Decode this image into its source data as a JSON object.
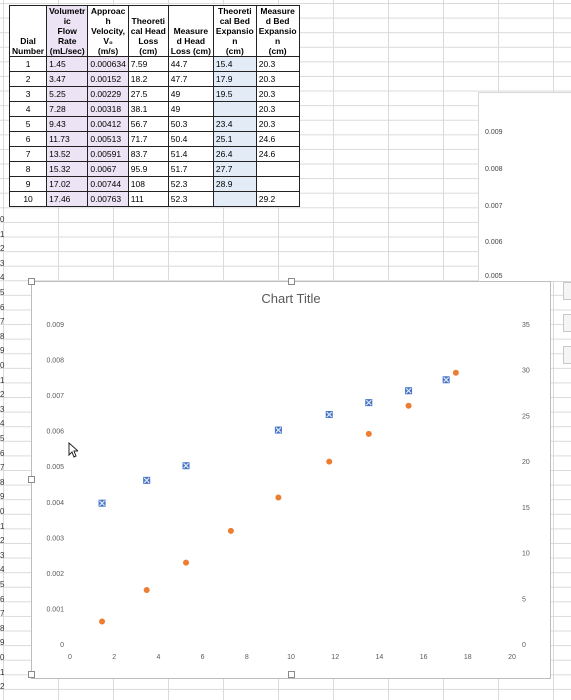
{
  "table": {
    "headers": [
      "Dial\nNumber",
      "Volumetr\nic\nFlow\nRate\n(mL/sec)",
      "Approac\nh\nVelocity,\nV₀\n(m/s)",
      "Theoreti\ncal Head\nLoss\n(cm)",
      "Measure\nd Head\nLoss (cm)",
      "Theoreti\ncal Bed\nExpansio\nn\n(cm)",
      "Measure\nd Bed\nExpansio\nn\n(cm)"
    ],
    "rows": [
      [
        "1",
        "1.45",
        "0.000634",
        "7.59",
        "44.7",
        "15.4",
        "20.3"
      ],
      [
        "2",
        "3.47",
        "0.00152",
        "18.2",
        "47.7",
        "17.9",
        "20.3"
      ],
      [
        "3",
        "5.25",
        "0.00229",
        "27.5",
        "49",
        "19.5",
        "20.3"
      ],
      [
        "4",
        "7.28",
        "0.00318",
        "38.1",
        "49",
        "",
        "20.3"
      ],
      [
        "5",
        "9.43",
        "0.00412",
        "56.7",
        "50.3",
        "23.4",
        "20.3"
      ],
      [
        "6",
        "11.73",
        "0.00513",
        "71.7",
        "50.4",
        "25.1",
        "24.6"
      ],
      [
        "7",
        "13.52",
        "0.00591",
        "83.7",
        "51.4",
        "26.4",
        "24.6"
      ],
      [
        "8",
        "15.32",
        "0.0067",
        "95.9",
        "51.7",
        "27.7",
        ""
      ],
      [
        "9",
        "17.02",
        "0.00744",
        "108",
        "52.3",
        "28.9",
        ""
      ],
      [
        "10",
        "17.46",
        "0.00763",
        "111",
        "52.3",
        "",
        "29.2"
      ]
    ]
  },
  "side_panel": {
    "ticks": [
      "0.009",
      "0.008",
      "0.007",
      "0.006",
      "0.005"
    ]
  },
  "colors": {
    "series1": "#4472c4",
    "series2": "#ed7d31",
    "selection": "#9a7bc8"
  },
  "chart_data": {
    "type": "scatter",
    "title": "Chart Title",
    "xlim": [
      0,
      20
    ],
    "ylim_left": [
      0,
      0.009
    ],
    "ylim_right": [
      0,
      35
    ],
    "x_ticks": [
      "0",
      "2",
      "4",
      "6",
      "8",
      "10",
      "12",
      "14",
      "16",
      "18",
      "20"
    ],
    "y_left_ticks": [
      "0",
      "0.001",
      "0.002",
      "0.003",
      "0.004",
      "0.005",
      "0.006",
      "0.007",
      "0.008",
      "0.009"
    ],
    "y_right_ticks": [
      "0",
      "5",
      "10",
      "15",
      "20",
      "25",
      "30",
      "35"
    ],
    "series": [
      {
        "axis": "right",
        "marker": "x-square",
        "color": "#4472c4",
        "points": [
          [
            1.45,
            15.4
          ],
          [
            3.47,
            17.9
          ],
          [
            5.25,
            19.5
          ],
          [
            9.43,
            23.4
          ],
          [
            11.73,
            25.1
          ],
          [
            13.52,
            26.4
          ],
          [
            15.32,
            27.7
          ],
          [
            17.02,
            28.9
          ]
        ]
      },
      {
        "axis": "left",
        "marker": "circle",
        "color": "#ed7d31",
        "points": [
          [
            1.45,
            0.000634
          ],
          [
            3.47,
            0.00152
          ],
          [
            5.25,
            0.00229
          ],
          [
            7.28,
            0.00318
          ],
          [
            9.43,
            0.00412
          ],
          [
            11.73,
            0.00513
          ],
          [
            13.52,
            0.00591
          ],
          [
            15.32,
            0.0067
          ],
          [
            17.46,
            0.00763
          ]
        ]
      }
    ]
  }
}
